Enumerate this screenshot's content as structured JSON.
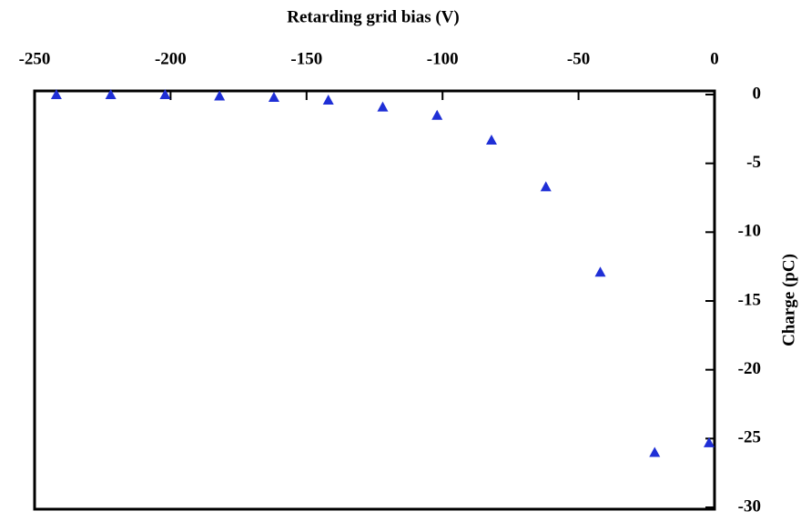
{
  "chart_data": {
    "type": "scatter",
    "x_label": "Retarding grid bias (V)",
    "y_label": "Charge (pC)",
    "x": [
      -242,
      -222,
      -202,
      -182,
      -162,
      -142,
      -122,
      -102,
      -82,
      -62,
      -42,
      -22,
      -2
    ],
    "series": [
      {
        "name": "Charge",
        "color": "#1f2fd6",
        "values": [
          0,
          0,
          0,
          -0.1,
          -0.2,
          -0.4,
          -0.9,
          -1.5,
          -3.3,
          -6.7,
          -12.9,
          -26,
          -25.3
        ]
      }
    ],
    "xlim": [
      -250,
      0
    ],
    "xticks": [
      -250,
      -200,
      -150,
      -100,
      -50,
      0
    ],
    "ylim": [
      -30,
      0
    ],
    "yticks": [
      0,
      -5,
      -10,
      -15,
      -20,
      -25,
      -30
    ]
  }
}
